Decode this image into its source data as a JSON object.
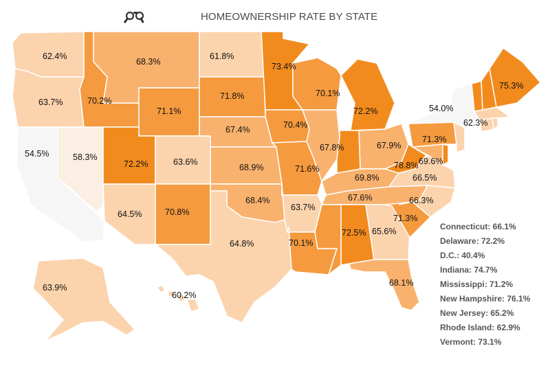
{
  "title": "HOMEOWNERSHIP RATE BY STATE",
  "title_icon": "house-keys-icon",
  "colors": {
    "lowest": "#f6f6f6",
    "low": "#fbeee2",
    "mid_low": "#fbd3ad",
    "mid": "#f9b26e",
    "mid_high": "#f59a3e",
    "highest": "#f28b1e",
    "border": "#ffffff",
    "label_text": "#111111",
    "note_text": "#555555"
  },
  "map_data": {
    "metric": "Homeownership rate",
    "labeled_states": [
      {
        "state": "Washington",
        "label": "62.4%",
        "value": 62.4
      },
      {
        "state": "Oregon",
        "label": "63.7%",
        "value": 63.7
      },
      {
        "state": "California",
        "label": "54.5%",
        "value": 54.5
      },
      {
        "state": "Nevada",
        "label": "58.3%",
        "value": 58.3
      },
      {
        "state": "Idaho",
        "label": "70.2%",
        "value": 70.2
      },
      {
        "state": "Montana",
        "label": "68.3%",
        "value": 68.3
      },
      {
        "state": "Wyoming",
        "label": "71.1%",
        "value": 71.1
      },
      {
        "state": "Utah",
        "label": "72.2%",
        "value": 72.2
      },
      {
        "state": "Colorado",
        "label": "63.6%",
        "value": 63.6
      },
      {
        "state": "Arizona",
        "label": "64.5%",
        "value": 64.5
      },
      {
        "state": "New Mexico",
        "label": "70.8%",
        "value": 70.8
      },
      {
        "state": "North Dakota",
        "label": "61.8%",
        "value": 61.8
      },
      {
        "state": "South Dakota",
        "label": "71.8%",
        "value": 71.8
      },
      {
        "state": "Nebraska",
        "label": "67.4%",
        "value": 67.4
      },
      {
        "state": "Kansas",
        "label": "68.9%",
        "value": 68.9
      },
      {
        "state": "Oklahoma",
        "label": "68.4%",
        "value": 68.4
      },
      {
        "state": "Texas",
        "label": "64.8%",
        "value": 64.8
      },
      {
        "state": "Minnesota",
        "label": "73.4%",
        "value": 73.4
      },
      {
        "state": "Iowa",
        "label": "70.4%",
        "value": 70.4
      },
      {
        "state": "Missouri",
        "label": "71.6%",
        "value": 71.6
      },
      {
        "state": "Arkansas",
        "label": "63.7%",
        "value": 63.7
      },
      {
        "state": "Louisiana",
        "label": "70.1%",
        "value": 70.1
      },
      {
        "state": "Wisconsin",
        "label": "70.1%",
        "value": 70.1
      },
      {
        "state": "Illinois",
        "label": "67.8%",
        "value": 67.8
      },
      {
        "state": "Michigan",
        "label": "72.2%",
        "value": 72.2
      },
      {
        "state": "Ohio",
        "label": "67.9%",
        "value": 67.9
      },
      {
        "state": "Kentucky",
        "label": "69.8%",
        "value": 69.8
      },
      {
        "state": "Tennessee",
        "label": "67.6%",
        "value": 67.6
      },
      {
        "state": "Alabama",
        "label": "72.5%",
        "value": 72.5
      },
      {
        "state": "Georgia",
        "label": "65.6%",
        "value": 65.6
      },
      {
        "state": "Florida",
        "label": "68.1%",
        "value": 68.1
      },
      {
        "state": "South Carolina",
        "label": "71.3%",
        "value": 71.3
      },
      {
        "state": "North Carolina",
        "label": "66.3%",
        "value": 66.3
      },
      {
        "state": "Virginia",
        "label": "66.5%",
        "value": 66.5
      },
      {
        "state": "West Virginia",
        "label": "78.8%",
        "value": 78.8
      },
      {
        "state": "Maryland",
        "label": "69.6%",
        "value": 69.6
      },
      {
        "state": "Pennsylvania",
        "label": "71.3%",
        "value": 71.3
      },
      {
        "state": "New York",
        "label": "54.0%",
        "value": 54.0
      },
      {
        "state": "Massachusetts",
        "label": "62.3%",
        "value": 62.3
      },
      {
        "state": "Maine",
        "label": "75.3%",
        "value": 75.3
      },
      {
        "state": "Alaska",
        "label": "63.9%",
        "value": 63.9
      },
      {
        "state": "Hawaii",
        "label": "60.2%",
        "value": 60.2
      }
    ],
    "unlabeled_states": [
      {
        "state": "Mississippi",
        "value": 71.2
      },
      {
        "state": "Indiana",
        "value": 74.7
      },
      {
        "state": "Vermont",
        "value": 73.1
      },
      {
        "state": "New Hampshire",
        "value": 76.1
      },
      {
        "state": "Connecticut",
        "value": 66.1
      },
      {
        "state": "Rhode Island",
        "value": 62.9
      },
      {
        "state": "New Jersey",
        "value": 65.2
      },
      {
        "state": "Delaware",
        "value": 72.2
      },
      {
        "state": "D.C.",
        "value": 40.4
      }
    ],
    "side_notes": [
      "Connecticut: 66.1%",
      "Delaware: 72.2%",
      "D.C.: 40.4%",
      "Indiana: 74.7%",
      "Mississippi: 71.2%",
      "New Hampshire: 76.1%",
      "New Jersey: 65.2%",
      "Rhode Island: 62.9%",
      "Vermont: 73.1%"
    ]
  }
}
